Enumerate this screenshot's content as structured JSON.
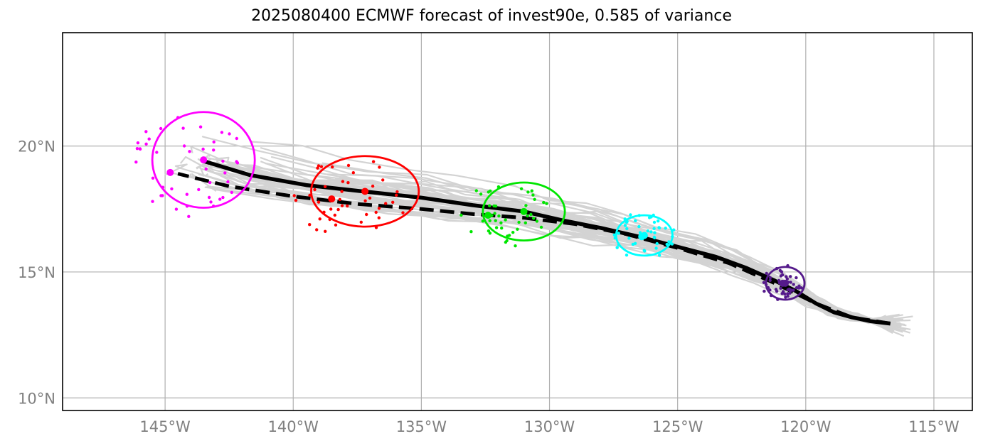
{
  "title": "2025080400 ECMWF forecast of invest90e, 0.585 of variance",
  "map": {
    "lon_range": [
      -149.0,
      -113.5
    ],
    "lat_range": [
      9.5,
      24.5
    ],
    "x_ticks": [
      {
        "lon": -145,
        "label": "145°W"
      },
      {
        "lon": -140,
        "label": "140°W"
      },
      {
        "lon": -135,
        "label": "135°W"
      },
      {
        "lon": -130,
        "label": "130°W"
      },
      {
        "lon": -125,
        "label": "125°W"
      },
      {
        "lon": -120,
        "label": "120°W"
      },
      {
        "lon": -115,
        "label": "115°W"
      }
    ],
    "y_ticks": [
      {
        "lat": 10,
        "label": "10°N"
      },
      {
        "lat": 15,
        "label": "15°N"
      },
      {
        "lat": 20,
        "label": "20°N"
      }
    ],
    "gridlines": true,
    "colors": {
      "ensemble": "#d3d3d3",
      "mean_track": "#000000",
      "grid": "#b0b0b0",
      "tick_label": "#808080"
    },
    "mean_track": [
      [
        -116.7,
        12.95
      ],
      [
        -117.5,
        13.05
      ],
      [
        -118.2,
        13.2
      ],
      [
        -118.9,
        13.4
      ],
      [
        -119.6,
        13.75
      ],
      [
        -120.4,
        14.25
      ],
      [
        -121.2,
        14.65
      ],
      [
        -122.3,
        15.15
      ],
      [
        -123.5,
        15.6
      ],
      [
        -125.0,
        16.0
      ],
      [
        -126.5,
        16.4
      ],
      [
        -128.0,
        16.75
      ],
      [
        -129.5,
        17.05
      ],
      [
        -131.0,
        17.4
      ],
      [
        -133.0,
        17.65
      ],
      [
        -135.0,
        17.95
      ],
      [
        -137.3,
        18.2
      ],
      [
        -139.5,
        18.45
      ],
      [
        -141.7,
        18.85
      ],
      [
        -143.5,
        19.4
      ]
    ],
    "dashed_track": [
      [
        -116.7,
        12.95
      ],
      [
        -118.2,
        13.2
      ],
      [
        -119.6,
        13.75
      ],
      [
        -121.2,
        14.55
      ],
      [
        -123.0,
        15.35
      ],
      [
        -125.0,
        15.95
      ],
      [
        -127.0,
        16.5
      ],
      [
        -129.0,
        16.9
      ],
      [
        -131.0,
        17.15
      ],
      [
        -133.0,
        17.3
      ],
      [
        -135.0,
        17.5
      ],
      [
        -137.5,
        17.7
      ],
      [
        -140.0,
        18.0
      ],
      [
        -142.5,
        18.4
      ],
      [
        -144.5,
        18.9
      ]
    ],
    "clusters": [
      {
        "color": "#ff00ff",
        "center": [
          -143.5,
          19.45
        ],
        "mean": [
          -144.8,
          18.95
        ],
        "ellipse": {
          "rx_deg": 2.0,
          "ry_deg": 1.9
        }
      },
      {
        "color": "#ff0000",
        "center": [
          -137.2,
          18.2
        ],
        "mean": [
          -138.5,
          17.9
        ],
        "ellipse": {
          "rx_deg": 2.1,
          "ry_deg": 1.4
        }
      },
      {
        "color": "#00e600",
        "center": [
          -131.0,
          17.4
        ],
        "mean": [
          -132.4,
          17.25
        ],
        "ellipse": {
          "rx_deg": 1.6,
          "ry_deg": 1.15
        }
      },
      {
        "color": "#00ffff",
        "center": [
          -126.3,
          16.45
        ],
        "mean": [
          -126.4,
          16.4
        ],
        "ellipse": {
          "rx_deg": 1.1,
          "ry_deg": 0.8
        }
      },
      {
        "color": "#551a8b",
        "center": [
          -120.8,
          14.55
        ],
        "mean": [
          -120.9,
          14.55
        ],
        "ellipse": {
          "rx_deg": 0.75,
          "ry_deg": 0.65
        }
      }
    ]
  }
}
